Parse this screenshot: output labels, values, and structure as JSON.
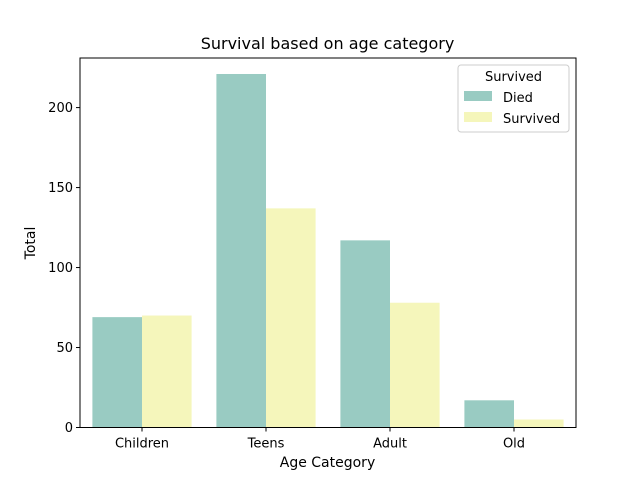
{
  "chart_data": {
    "type": "bar",
    "title": "Survival based on age category",
    "xlabel": "Age Category",
    "ylabel": "Total",
    "categories": [
      "Children",
      "Teens",
      "Adult",
      "Old"
    ],
    "series": [
      {
        "name": "Died",
        "values": [
          69,
          221,
          117,
          17
        ],
        "color": "#99cbc2"
      },
      {
        "name": "Survived",
        "values": [
          70,
          137,
          78,
          5
        ],
        "color": "#f5f6bb"
      }
    ],
    "ylim": [
      0,
      231
    ],
    "yticks": [
      0,
      50,
      100,
      150,
      200
    ],
    "grid": false,
    "legend": {
      "title": "Survived",
      "placement": "top-right"
    }
  }
}
